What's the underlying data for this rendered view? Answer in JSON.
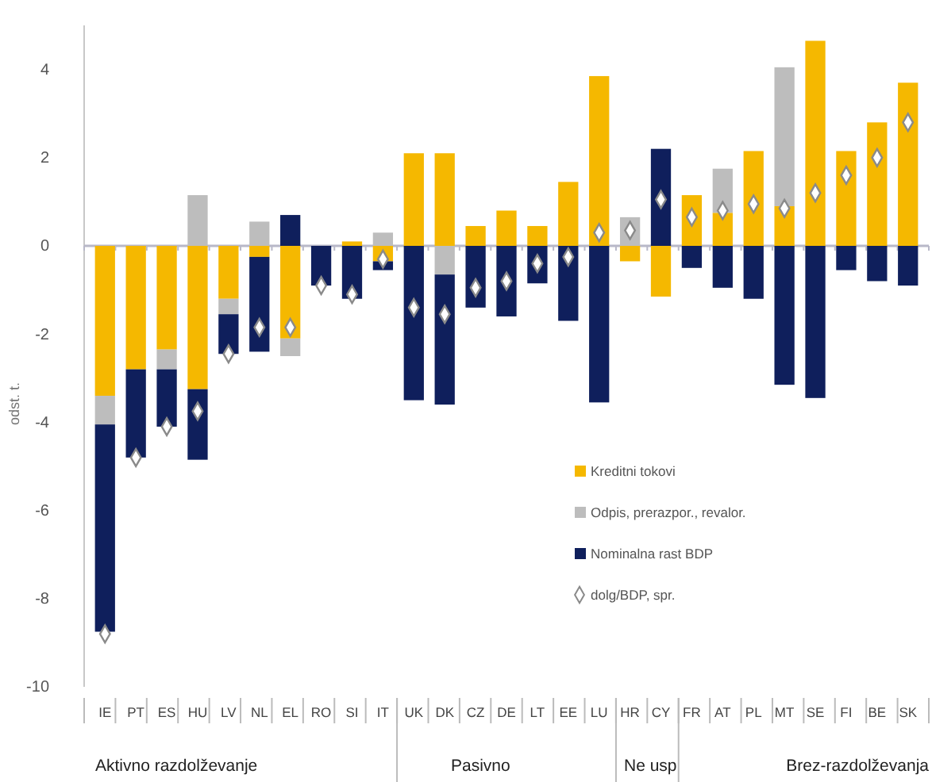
{
  "chart_data": {
    "type": "bar",
    "stacked": true,
    "ylabel": "odst. t.",
    "categories": [
      "IE",
      "PT",
      "ES",
      "HU",
      "LV",
      "NL",
      "EL",
      "RO",
      "SI",
      "IT",
      "UK",
      "DK",
      "CZ",
      "DE",
      "LT",
      "EE",
      "LU",
      "HR",
      "CY",
      "FR",
      "AT",
      "PL",
      "MT",
      "SE",
      "FI",
      "BE",
      "SK"
    ],
    "series": [
      {
        "name": "Kreditni tokovi",
        "color": "#f5b800",
        "values": [
          -3.4,
          -2.8,
          -2.35,
          -3.25,
          -1.2,
          -0.25,
          -2.1,
          0,
          0.1,
          -0.35,
          2.1,
          2.1,
          0.45,
          0.8,
          0.45,
          1.45,
          3.85,
          -0.35,
          -1.15,
          1.15,
          0.75,
          2.15,
          0.9,
          4.65,
          2.15,
          2.8,
          3.7
        ]
      },
      {
        "name": "Odpis, prerazpor., revalor.",
        "color": "#bdbdbd",
        "values": [
          -0.65,
          0,
          -0.45,
          1.15,
          -0.35,
          0.55,
          -0.4,
          0,
          0,
          0.3,
          0,
          -0.65,
          0,
          0,
          0,
          0,
          0,
          0.65,
          0,
          0,
          1.0,
          0,
          3.15,
          0,
          0,
          0,
          0
        ]
      },
      {
        "name": "Nominalna rast BDP",
        "color": "#0f1f5c",
        "values": [
          -4.7,
          -2.0,
          -1.3,
          -1.6,
          -0.9,
          -2.15,
          0.7,
          -0.9,
          -1.2,
          -0.2,
          -3.5,
          -2.95,
          -1.4,
          -1.6,
          -0.85,
          -1.7,
          -3.55,
          0,
          2.2,
          -0.5,
          -0.95,
          -1.2,
          -3.15,
          -3.45,
          -0.55,
          -0.8,
          -0.9
        ]
      },
      {
        "name": "dolg/BDP, spr.",
        "type": "scatter",
        "marker": "diamond",
        "color": "#ffffff",
        "values": [
          -8.8,
          -4.8,
          -4.1,
          -3.75,
          -2.45,
          -1.85,
          -1.85,
          -0.9,
          -1.1,
          -0.3,
          -1.4,
          -1.55,
          -0.95,
          -0.8,
          -0.4,
          -0.25,
          0.3,
          0.35,
          1.05,
          0.65,
          0.8,
          0.95,
          0.85,
          1.2,
          1.6,
          2.0,
          2.8
        ]
      }
    ],
    "ylim": [
      -10,
      5
    ],
    "yticks": [
      -10,
      -8,
      -6,
      -4,
      -2,
      0,
      2,
      4
    ],
    "legend": "bottom right",
    "annotations": [
      "Aktivno razdolževanje",
      "Pasivno",
      "Ne usp",
      "Brez-razdolževanja"
    ]
  }
}
